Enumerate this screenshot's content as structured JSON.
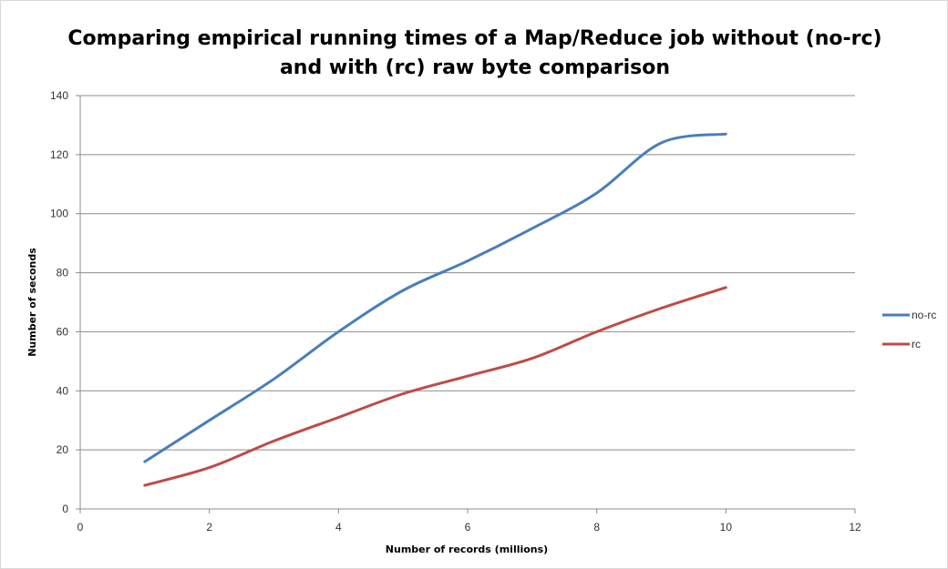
{
  "chart_data": {
    "type": "line",
    "title_lines": [
      "Comparing empirical running times of a Map/Reduce job without (no-rc)",
      "and with (rc) raw byte comparison"
    ],
    "xlabel": "Number of records (millions)",
    "ylabel": "Number of seconds",
    "xlim": [
      0,
      12
    ],
    "ylim": [
      0,
      140
    ],
    "xticks": [
      0,
      2,
      4,
      6,
      8,
      10,
      12
    ],
    "yticks": [
      0,
      20,
      40,
      60,
      80,
      100,
      120,
      140
    ],
    "grid": "horizontal",
    "legend_position": "right",
    "smooth": true,
    "series": [
      {
        "name": "no-rc",
        "color": "#4a7ebb",
        "x": [
          1,
          2,
          3,
          4,
          5,
          6,
          7,
          8,
          9,
          10
        ],
        "y": [
          16,
          30,
          44,
          60,
          74,
          84,
          95,
          107,
          124,
          127
        ]
      },
      {
        "name": "rc",
        "color": "#be4b48",
        "x": [
          1,
          2,
          3,
          4,
          5,
          6,
          7,
          8,
          9,
          10
        ],
        "y": [
          8,
          14,
          23,
          31,
          39,
          45,
          51,
          60,
          68,
          75
        ]
      }
    ]
  }
}
